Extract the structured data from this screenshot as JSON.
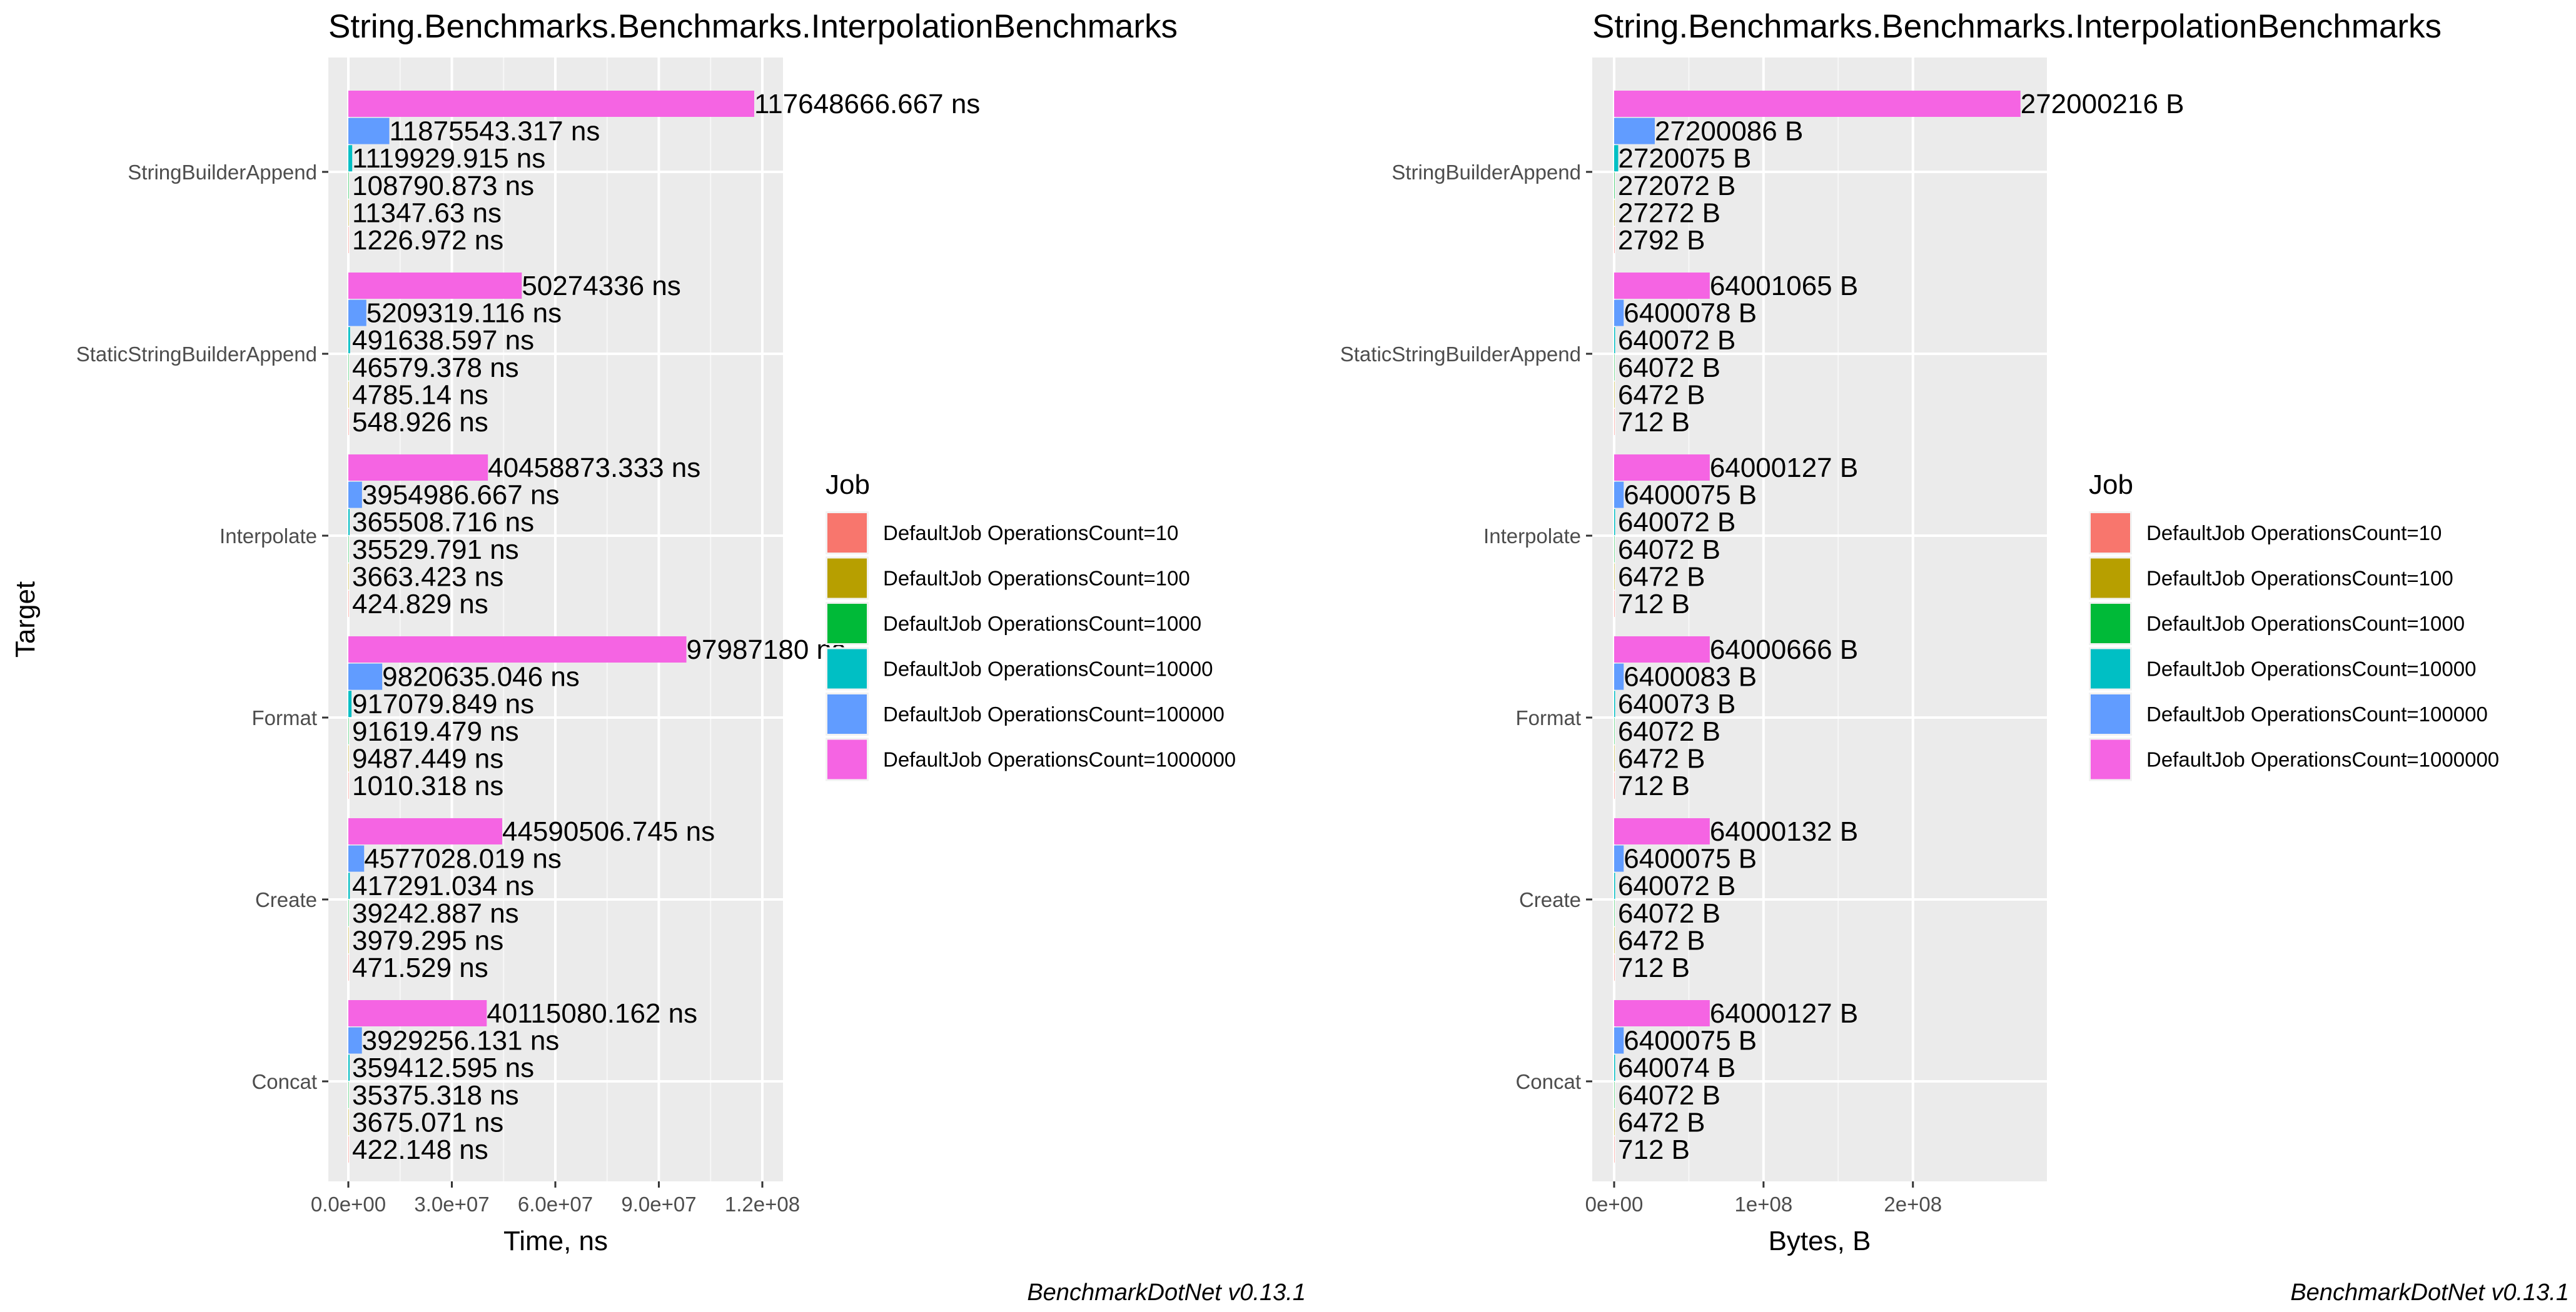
{
  "chart_data": [
    {
      "type": "bar",
      "title": "String.Benchmarks.Benchmarks.InterpolationBenchmarks",
      "xlabel": "Time, ns",
      "ylabel": "Target",
      "orientation": "horizontal",
      "xlim": [
        0,
        122000000
      ],
      "x_ticks": [
        0,
        30000000,
        60000000,
        90000000,
        120000000
      ],
      "x_tick_labels": [
        "0.0e+00",
        "3.0e+07",
        "6.0e+07",
        "9.0e+07",
        "1.2e+08"
      ],
      "grid": true,
      "legend": {
        "title": "Job",
        "position": "right",
        "entries": [
          "DefaultJob OperationsCount=10",
          "DefaultJob OperationsCount=100",
          "DefaultJob OperationsCount=1000",
          "DefaultJob OperationsCount=10000",
          "DefaultJob OperationsCount=100000",
          "DefaultJob OperationsCount=1000000"
        ]
      },
      "caption": "BenchmarkDotNet v0.13.1",
      "categories": [
        "StringBuilderAppend",
        "StaticStringBuilderAppend",
        "Interpolate",
        "Format",
        "Create",
        "Concat"
      ],
      "series": [
        {
          "name": "DefaultJob OperationsCount=1000000",
          "color": "#F564E3",
          "values": [
            117648666.667,
            50274336,
            40458873.333,
            97987180,
            44590506.745,
            40115080.162
          ],
          "labels": [
            "117648666.667 ns",
            "50274336 ns",
            "40458873.333 ns",
            "97987180 ns",
            "44590506.745 ns",
            "40115080.162 ns"
          ]
        },
        {
          "name": "DefaultJob OperationsCount=100000",
          "color": "#619CFF",
          "values": [
            11875543.317,
            5209319.116,
            3954986.667,
            9820635.046,
            4577028.019,
            3929256.131
          ],
          "labels": [
            "11875543.317 ns",
            "5209319.116 ns",
            "3954986.667 ns",
            "9820635.046 ns",
            "4577028.019 ns",
            "3929256.131 ns"
          ]
        },
        {
          "name": "DefaultJob OperationsCount=10000",
          "color": "#00BFC4",
          "values": [
            1119929.915,
            491638.597,
            365508.716,
            917079.849,
            417291.034,
            359412.595
          ],
          "labels": [
            "1119929.915 ns",
            "491638.597 ns",
            "365508.716 ns",
            "917079.849 ns",
            "417291.034 ns",
            "359412.595 ns"
          ]
        },
        {
          "name": "DefaultJob OperationsCount=1000",
          "color": "#00BA38",
          "values": [
            108790.873,
            46579.378,
            35529.791,
            91619.479,
            39242.887,
            35375.318
          ],
          "labels": [
            "108790.873 ns",
            "46579.378 ns",
            "35529.791 ns",
            "91619.479 ns",
            "39242.887 ns",
            "35375.318 ns"
          ]
        },
        {
          "name": "DefaultJob OperationsCount=100",
          "color": "#B79F00",
          "values": [
            11347.63,
            4785.14,
            3663.423,
            9487.449,
            3979.295,
            3675.071
          ],
          "labels": [
            "11347.63 ns",
            "4785.14 ns",
            "3663.423 ns",
            "9487.449 ns",
            "3979.295 ns",
            "3675.071 ns"
          ]
        },
        {
          "name": "DefaultJob OperationsCount=10",
          "color": "#F8766D",
          "values": [
            1226.972,
            548.926,
            424.829,
            1010.318,
            471.529,
            422.148
          ],
          "labels": [
            "1226.972 ns",
            "548.926 ns",
            "424.829 ns",
            "1010.318 ns",
            "471.529 ns",
            "422.148 ns"
          ]
        }
      ]
    },
    {
      "type": "bar",
      "title": "String.Benchmarks.Benchmarks.InterpolationBenchmarks",
      "xlabel": "Bytes, B",
      "ylabel": "",
      "orientation": "horizontal",
      "xlim": [
        0,
        283000000
      ],
      "x_ticks": [
        0,
        100000000,
        200000000
      ],
      "x_tick_labels": [
        "0e+00",
        "1e+08",
        "2e+08"
      ],
      "grid": true,
      "legend": {
        "title": "Job",
        "position": "right",
        "entries": [
          "DefaultJob OperationsCount=10",
          "DefaultJob OperationsCount=100",
          "DefaultJob OperationsCount=1000",
          "DefaultJob OperationsCount=10000",
          "DefaultJob OperationsCount=100000",
          "DefaultJob OperationsCount=1000000"
        ]
      },
      "caption": "BenchmarkDotNet v0.13.1",
      "categories": [
        "StringBuilderAppend",
        "StaticStringBuilderAppend",
        "Interpolate",
        "Format",
        "Create",
        "Concat"
      ],
      "series": [
        {
          "name": "DefaultJob OperationsCount=1000000",
          "color": "#F564E3",
          "values": [
            272000216,
            64001065,
            64000127,
            64000666,
            64000132,
            64000127
          ],
          "labels": [
            "272000216 B",
            "64001065 B",
            "64000127 B",
            "64000666 B",
            "64000132 B",
            "64000127 B"
          ]
        },
        {
          "name": "DefaultJob OperationsCount=100000",
          "color": "#619CFF",
          "values": [
            27200086,
            6400078,
            6400075,
            6400083,
            6400075,
            6400075
          ],
          "labels": [
            "27200086 B",
            "6400078 B",
            "6400075 B",
            "6400083 B",
            "6400075 B",
            "6400075 B"
          ]
        },
        {
          "name": "DefaultJob OperationsCount=10000",
          "color": "#00BFC4",
          "values": [
            2720075,
            640072,
            640072,
            640073,
            640072,
            640074
          ],
          "labels": [
            "2720075 B",
            "640072 B",
            "640072 B",
            "640073 B",
            "640072 B",
            "640074 B"
          ]
        },
        {
          "name": "DefaultJob OperationsCount=1000",
          "color": "#00BA38",
          "values": [
            272072,
            64072,
            64072,
            64072,
            64072,
            64072
          ],
          "labels": [
            "272072 B",
            "64072 B",
            "64072 B",
            "64072 B",
            "64072 B",
            "64072 B"
          ]
        },
        {
          "name": "DefaultJob OperationsCount=100",
          "color": "#B79F00",
          "values": [
            27272,
            6472,
            6472,
            6472,
            6472,
            6472
          ],
          "labels": [
            "27272 B",
            "6472 B",
            "6472 B",
            "6472 B",
            "6472 B",
            "6472 B"
          ]
        },
        {
          "name": "DefaultJob OperationsCount=10",
          "color": "#F8766D",
          "values": [
            2792,
            712,
            712,
            712,
            712,
            712
          ],
          "labels": [
            "2792 B",
            "712 B",
            "712 B",
            "712 B",
            "712 B",
            "712 B"
          ]
        }
      ]
    }
  ]
}
